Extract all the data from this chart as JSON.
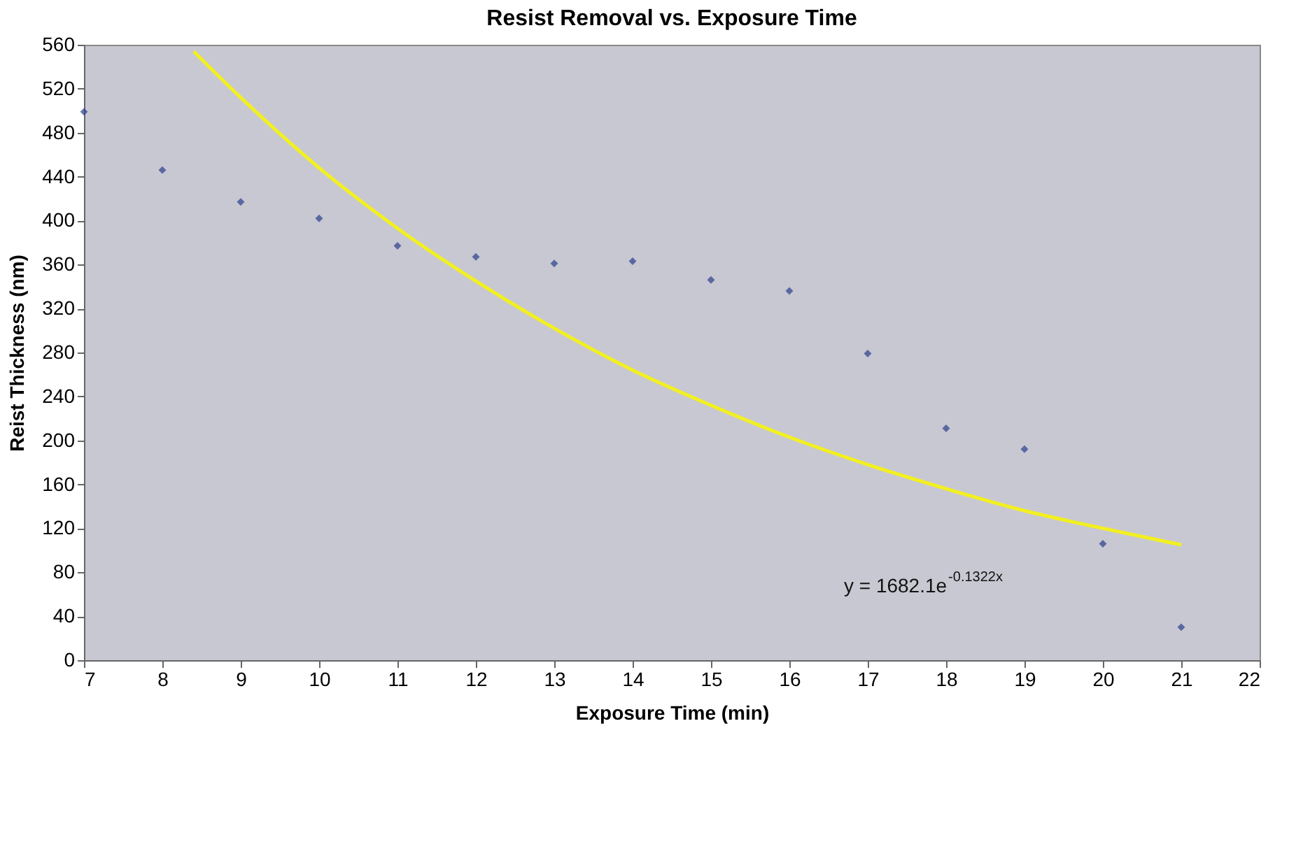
{
  "chart_data": {
    "type": "scatter",
    "title": "Resist Removal vs. Exposure Time",
    "xlabel": "Exposure Time (min)",
    "ylabel": "Reist Thickness (nm)",
    "x": [
      7,
      8,
      9,
      10,
      11,
      12,
      13,
      14,
      15,
      16,
      17,
      18,
      19,
      20,
      21
    ],
    "series": [
      {
        "color": "#2b3f8c",
        "marker": "diamond",
        "values": [
          499,
          446,
          417,
          402,
          377,
          367,
          361,
          363,
          346,
          336,
          279,
          211,
          192,
          106,
          30
        ]
      },
      {
        "type": "line",
        "color": "#f2f020",
        "x": [
          8.4,
          9,
          10,
          11,
          12,
          13,
          14,
          15,
          16,
          17,
          18,
          19,
          20,
          21
        ],
        "values": [
          554,
          512,
          448,
          393,
          345,
          302,
          264,
          232,
          203,
          178,
          156,
          136,
          120,
          105
        ]
      }
    ],
    "annotations": [
      "y = 1682.1e$^{-0.1322x}$"
    ],
    "xlim": [
      7,
      22
    ],
    "xticks": [
      7,
      8,
      9,
      10,
      11,
      12,
      13,
      14,
      15,
      16,
      17,
      18,
      19,
      20,
      21,
      22
    ],
    "ylim": [
      0,
      560
    ],
    "yticks": [
      0,
      40,
      80,
      120,
      160,
      200,
      240,
      280,
      320,
      360,
      400,
      440,
      480,
      520,
      560
    ],
    "grid": false
  }
}
